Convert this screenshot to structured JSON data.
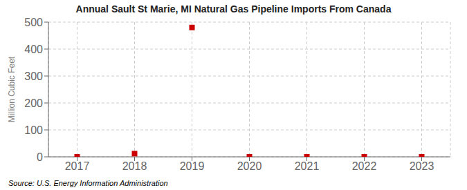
{
  "chart_data": {
    "type": "scatter",
    "title": "Annual Sault St Marie, MI Natural Gas Pipeline Imports From Canada",
    "ylabel": "Million Cubic Feet",
    "annotation": "Source: U.S. Energy Information Administration",
    "x": [
      2017,
      2018,
      2019,
      2020,
      2021,
      2022,
      2023
    ],
    "values": [
      0,
      12,
      480,
      0,
      0,
      0,
      0
    ],
    "color": "#cc0000",
    "marker": "square",
    "xlim": [
      2016.5,
      2023.5
    ],
    "xticks": [
      2017,
      2018,
      2019,
      2020,
      2021,
      2022,
      2023
    ],
    "ylim": [
      0,
      500
    ],
    "yticks": [
      0,
      100,
      200,
      300,
      400,
      500
    ],
    "grid": true
  }
}
